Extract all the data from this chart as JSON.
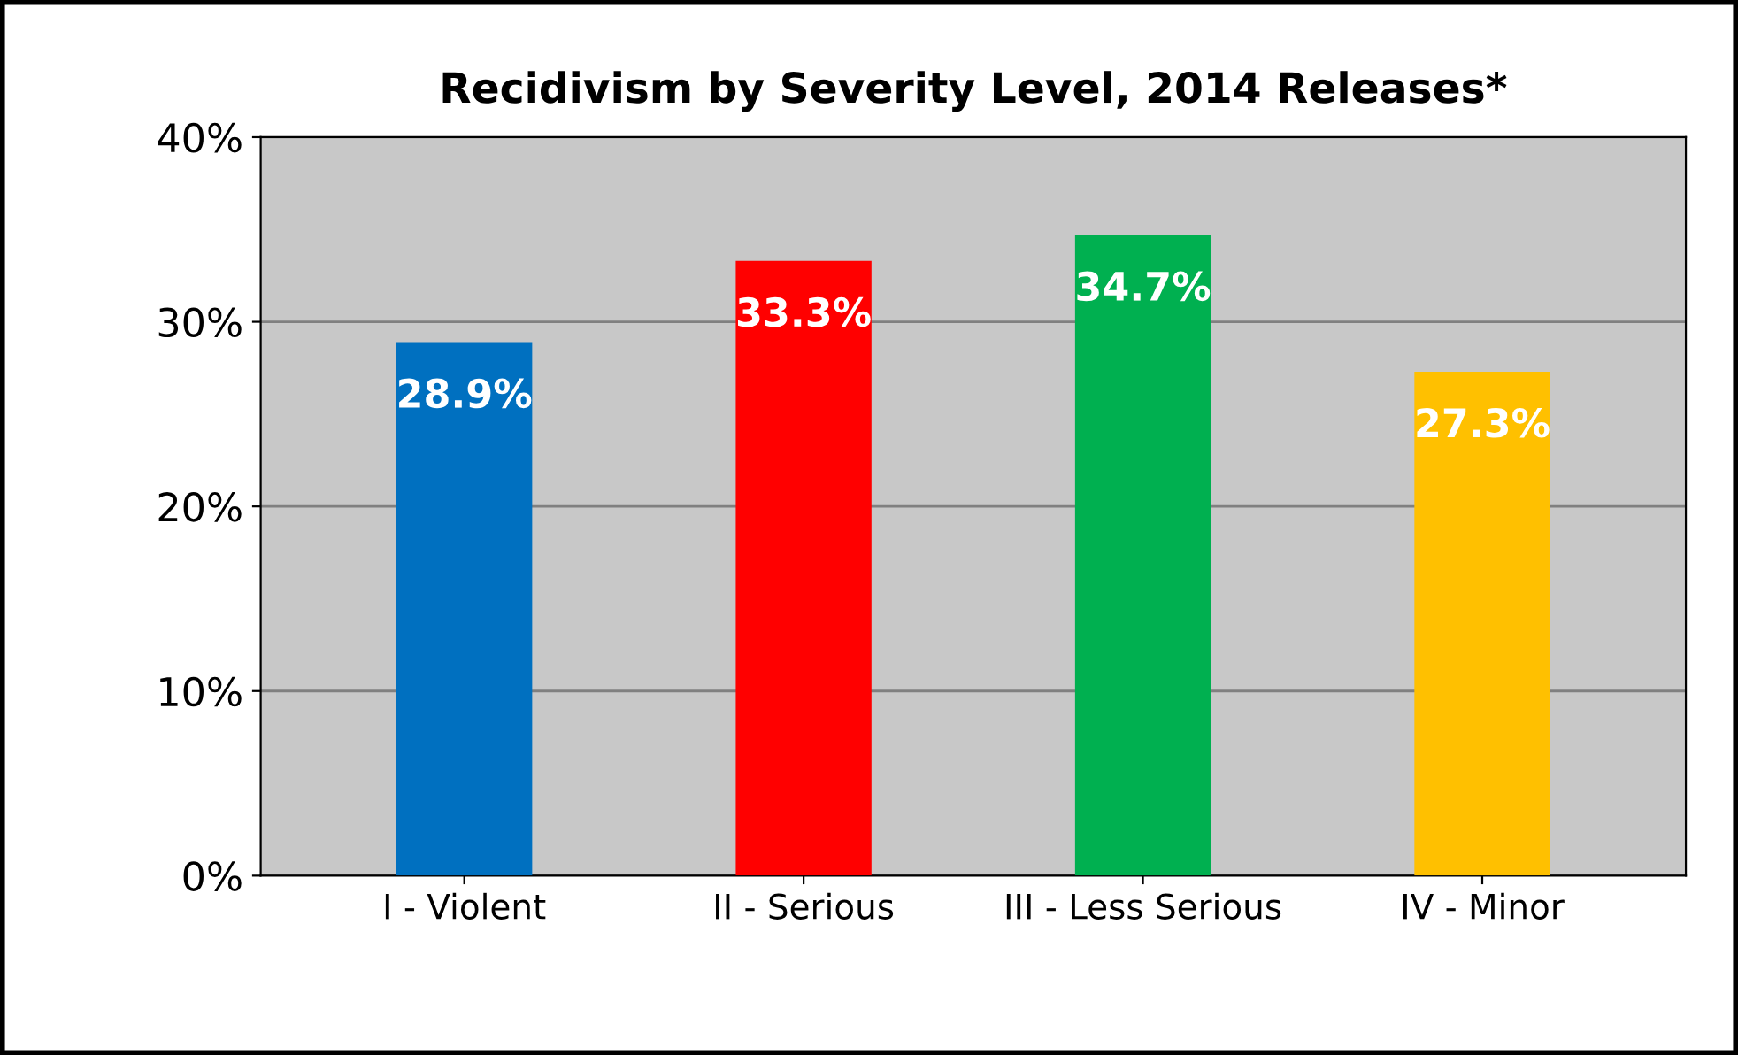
{
  "chart_data": {
    "type": "bar",
    "title": "Recidivism by Severity Level, 2014 Releases*",
    "categories": [
      "I - Violent",
      "II - Serious",
      "III - Less Serious",
      "IV - Minor"
    ],
    "values": [
      28.9,
      33.3,
      34.7,
      27.3
    ],
    "colors": [
      "#0070c0",
      "#ff0000",
      "#00b050",
      "#ffc000"
    ],
    "value_labels": [
      "28.9%",
      "33.3%",
      "34.7%",
      "27.3%"
    ],
    "ylim": [
      0,
      40
    ],
    "yticks": [
      {
        "value": 0,
        "label": "0%"
      },
      {
        "value": 10,
        "label": "10%"
      },
      {
        "value": 20,
        "label": "20%"
      },
      {
        "value": 30,
        "label": "30%"
      },
      {
        "value": 40,
        "label": "40%"
      }
    ],
    "grid": "y"
  }
}
